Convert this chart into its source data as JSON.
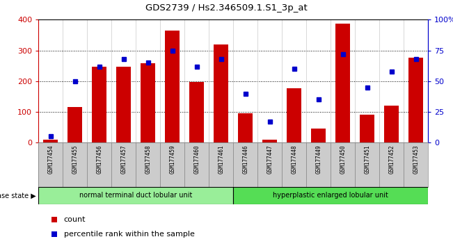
{
  "title": "GDS2739 / Hs2.346509.1.S1_3p_at",
  "samples": [
    "GSM177454",
    "GSM177455",
    "GSM177456",
    "GSM177457",
    "GSM177458",
    "GSM177459",
    "GSM177460",
    "GSM177461",
    "GSM177446",
    "GSM177447",
    "GSM177448",
    "GSM177449",
    "GSM177450",
    "GSM177451",
    "GSM177452",
    "GSM177453"
  ],
  "counts": [
    10,
    115,
    248,
    246,
    258,
    365,
    197,
    320,
    95,
    10,
    176,
    46,
    388,
    90,
    120,
    277
  ],
  "percentiles": [
    5,
    50,
    62,
    68,
    65,
    75,
    62,
    68,
    40,
    17,
    60,
    35,
    72,
    45,
    58,
    68
  ],
  "group1_label": "normal terminal duct lobular unit",
  "group2_label": "hyperplastic enlarged lobular unit",
  "group1_count": 8,
  "group2_count": 8,
  "bar_color": "#cc0000",
  "dot_color": "#0000cc",
  "ylim_left": [
    0,
    400
  ],
  "ylim_right": [
    0,
    100
  ],
  "yticks_left": [
    0,
    100,
    200,
    300,
    400
  ],
  "yticks_right": [
    0,
    25,
    50,
    75,
    100
  ],
  "yticklabels_right": [
    "0",
    "25",
    "50",
    "75",
    "100%"
  ],
  "plot_bg": "#ffffff",
  "group1_color": "#99ee99",
  "group2_color": "#55dd55",
  "legend_count_label": "count",
  "legend_pct_label": "percentile rank within the sample"
}
